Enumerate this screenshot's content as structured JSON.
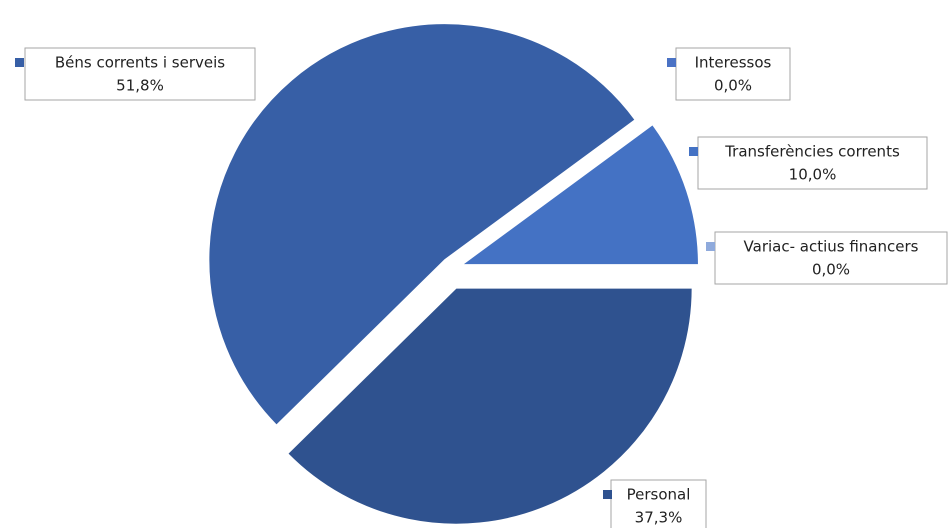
{
  "chart_data": {
    "type": "pie",
    "categories": [
      "Personal",
      "Béns corrents i serveis",
      "Interessos",
      "Transferències corrents",
      "Variac- actius financers"
    ],
    "values": [
      37.3,
      51.8,
      0.0,
      10.0,
      0.0
    ],
    "value_labels": [
      "37,3%",
      "51,8%",
      "0,0%",
      "10,0%",
      "0,0%"
    ],
    "colors": [
      "#2f528f",
      "#375fa6",
      "#4a72c4",
      "#4472c4",
      "#8faadc"
    ]
  }
}
